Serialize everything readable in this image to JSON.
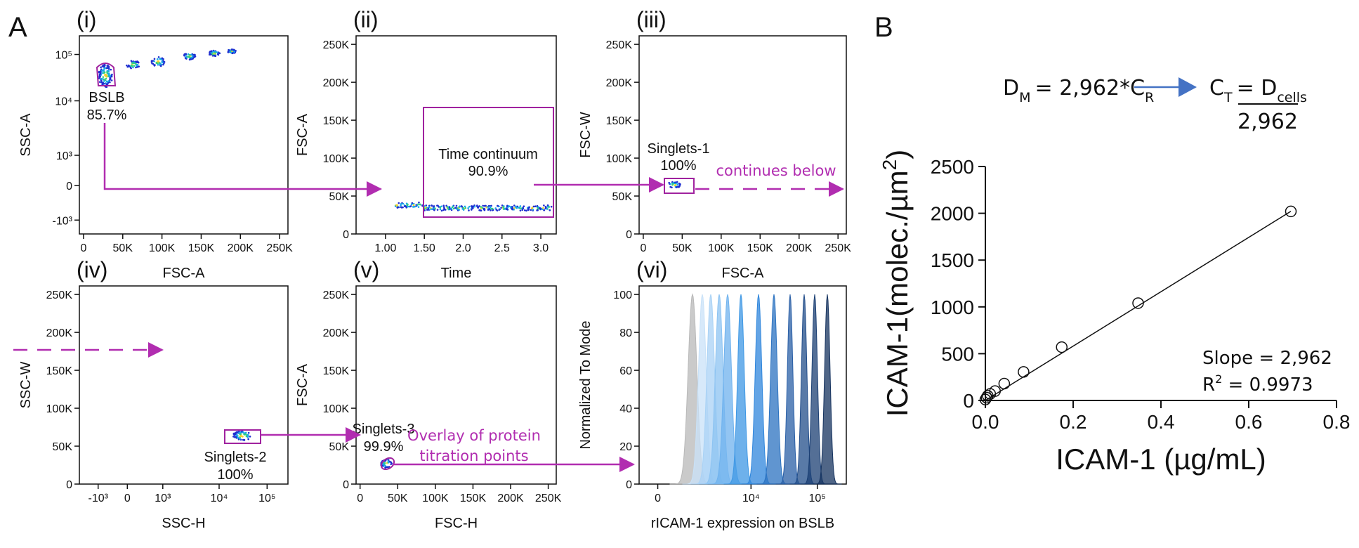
{
  "figure": {
    "panel_a_label": "A",
    "panel_b_label": "B"
  },
  "panel_a": {
    "colors": {
      "gate": "#a0229f",
      "arrow": "#b12db0",
      "populations": [
        "#1f2fd0",
        "#19a7e8",
        "#33d17a",
        "#f2d22e",
        "#e0322a"
      ]
    },
    "panels": [
      {
        "title": "(i)",
        "xlabel": "FSC-A",
        "ylabel": "SSC-A",
        "xscale": "linear",
        "yscale": "biexponential",
        "xticks": [
          "0",
          "50K",
          "100K",
          "150K",
          "200K",
          "250K"
        ],
        "yticks": [
          "10⁵",
          "10⁴",
          "10³",
          "0",
          "-10³"
        ],
        "gate": {
          "name": "BSLB",
          "percent": "85.7%",
          "shape": "polygon"
        }
      },
      {
        "title": "(ii)",
        "xlabel": "Time",
        "ylabel": "FSC-A",
        "xscale": "linear",
        "yscale": "linear",
        "xticks": [
          "1.00",
          "1.50",
          "2.0",
          "2.5",
          "3.0"
        ],
        "yticks": [
          "0",
          "50K",
          "100K",
          "150K",
          "200K",
          "250K"
        ],
        "gate": {
          "name": "Time continuum",
          "percent": "90.9%",
          "shape": "rectangle"
        }
      },
      {
        "title": "(iii)",
        "xlabel": "FSC-A",
        "ylabel": "FSC-W",
        "xscale": "linear",
        "yscale": "linear",
        "xticks": [
          "0",
          "50K",
          "100K",
          "150K",
          "200K",
          "250K"
        ],
        "yticks": [
          "0",
          "50K",
          "100K",
          "150K",
          "200K",
          "250K"
        ],
        "gate": {
          "name": "Singlets-1",
          "percent": "100%",
          "shape": "rectangle"
        }
      },
      {
        "title": "(iv)",
        "xlabel": "SSC-H",
        "ylabel": "SSC-W",
        "xscale": "biexponential",
        "yscale": "linear",
        "xticks": [
          "-10³",
          "0",
          "10³",
          "10⁴",
          "10⁵"
        ],
        "yticks": [
          "0",
          "50K",
          "100K",
          "150K",
          "200K",
          "250K"
        ],
        "gate": {
          "name": "Singlets-2",
          "percent": "100%",
          "shape": "rectangle"
        }
      },
      {
        "title": "(v)",
        "xlabel": "FSC-H",
        "ylabel": "FSC-A",
        "xscale": "linear",
        "yscale": "linear",
        "xticks": [
          "0",
          "50K",
          "100K",
          "150K",
          "200K",
          "250K"
        ],
        "yticks": [
          "0",
          "50K",
          "100K",
          "150K",
          "200K",
          "250K"
        ],
        "gate": {
          "name": "Singlets-3",
          "percent": "99.9%",
          "shape": "ellipse"
        }
      },
      {
        "title": "(vi)",
        "xlabel": "rICAM-1 expression on BSLB",
        "ylabel": "Normalized To Mode",
        "xscale": "biexponential",
        "yscale": "linear",
        "type": "histogram overlay",
        "xticks": [
          "0",
          "10⁴",
          "10⁵"
        ],
        "yticks": [
          "0",
          "20",
          "40",
          "60",
          "80",
          "100"
        ]
      }
    ],
    "annotations": {
      "continues": "continues below",
      "overlay_line1": "Overlay of protein",
      "overlay_line2": "titration points"
    }
  },
  "equation": {
    "lhs_d": "D",
    "lhs_d_sub": "M",
    "lhs_rest": "= 2,962*C",
    "lhs_c_sub": "R",
    "rhs_c": "C",
    "rhs_c_sub": "T",
    "rhs_eq": "= D",
    "rhs_d_sub": "cells",
    "denominator": "2,962",
    "arrow_color": "#4472c4"
  },
  "chart_data": {
    "type": "scatter",
    "x": [
      0,
      0.0027,
      0.0054,
      0.011,
      0.022,
      0.043,
      0.087,
      0.174,
      0.348,
      0.696
    ],
    "y": [
      10,
      30,
      50,
      70,
      100,
      180,
      305,
      570,
      1040,
      2020
    ],
    "xlabel": "ICAM-1 (µg/mL)",
    "ylabel_main": "ICAM-1(molec./µm",
    "ylabel_sup": "2",
    "ylabel_end": ")",
    "xlim": [
      0,
      0.8
    ],
    "ylim": [
      0,
      2500
    ],
    "xticks": [
      "0.0",
      "0.2",
      "0.4",
      "0.6",
      "0.8"
    ],
    "yticks": [
      "0",
      "500",
      "1000",
      "1500",
      "2000",
      "2500"
    ],
    "fit": {
      "type": "linear",
      "slope": 2962,
      "r2": 0.9973
    },
    "slope_label": "Slope = 2,962",
    "r2_label_r": "R",
    "r2_label_sup": "2",
    "r2_label_rest": " = 0.9973",
    "marker": "open-circle",
    "grid": false
  }
}
